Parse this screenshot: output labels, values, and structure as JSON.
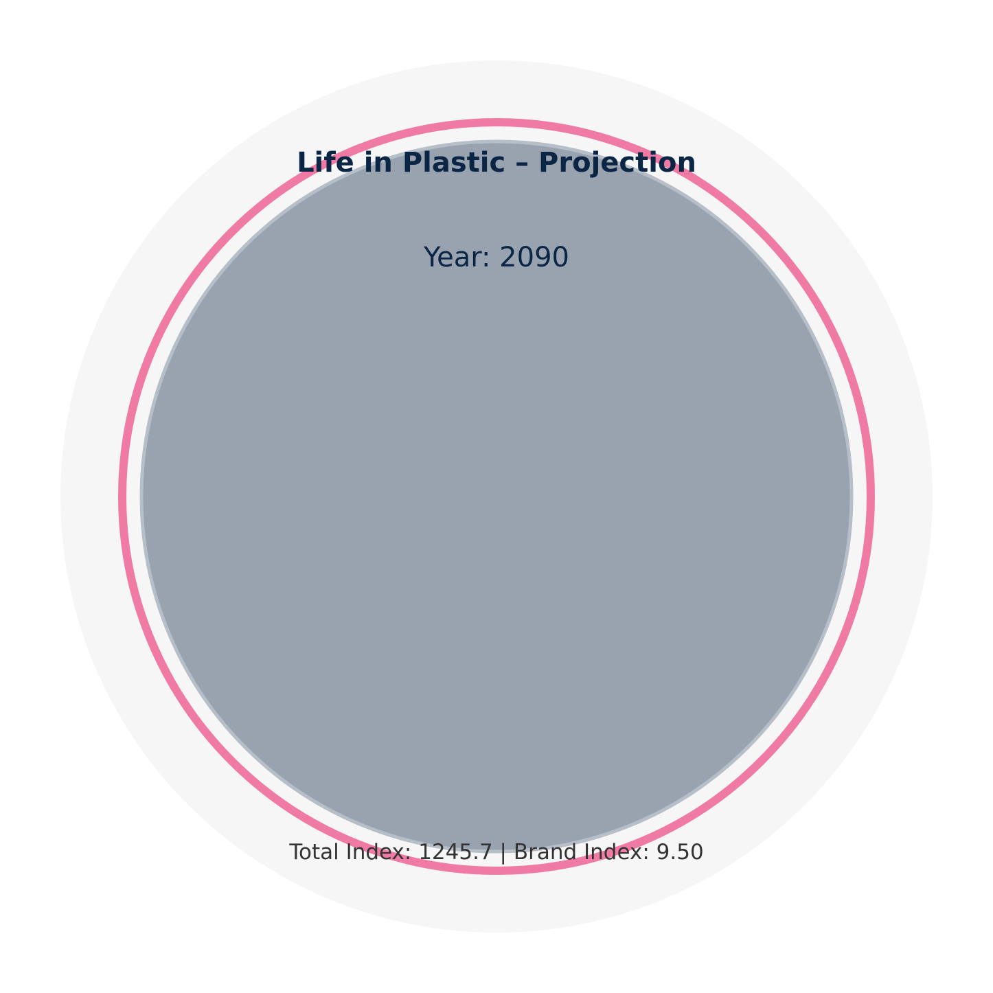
{
  "chart_data": {
    "type": "bubble",
    "title": "Life in Plastic – Projection",
    "subtitle": "Year: 2090",
    "footer": "Total Index: 1245.7 | Brand Index: 9.50",
    "year": 2090,
    "total_index": 1245.7,
    "brand_index": 9.5,
    "grid": false,
    "legend": "none",
    "colors": {
      "background_disc": "#f6f6f6",
      "ring": "#ef7ba4",
      "bubble_fill": "#98a3af",
      "bubble_edge": "#b6bec8",
      "title": "#0b2545",
      "footer": "#333333"
    }
  }
}
